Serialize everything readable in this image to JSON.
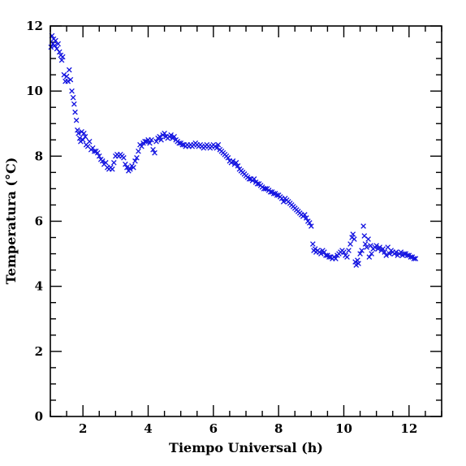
{
  "chart_data": {
    "type": "scatter",
    "title": "",
    "xlabel": "Tiempo Universal (h)",
    "ylabel": "Temperatura (°C)",
    "xlim": [
      1,
      13
    ],
    "ylim": [
      0,
      12
    ],
    "x_ticks": [
      2,
      4,
      6,
      8,
      10,
      12
    ],
    "x_tick_labels": [
      "2",
      "4",
      "6",
      "8",
      "10",
      "12"
    ],
    "y_ticks": [
      0,
      2,
      4,
      6,
      8,
      10,
      12
    ],
    "y_tick_labels": [
      "0",
      "2",
      "4",
      "6",
      "8",
      "10",
      "12"
    ],
    "grid": false,
    "legend": "none",
    "marker": "x",
    "color": "#1010e0",
    "series": [
      {
        "points": [
          [
            1.02,
            11.35
          ],
          [
            1.05,
            11.7
          ],
          [
            1.08,
            11.45
          ],
          [
            1.1,
            11.6
          ],
          [
            1.13,
            11.4
          ],
          [
            1.16,
            11.55
          ],
          [
            1.2,
            11.3
          ],
          [
            1.24,
            11.45
          ],
          [
            1.28,
            11.2
          ],
          [
            1.32,
            11.1
          ],
          [
            1.35,
            10.95
          ],
          [
            1.38,
            11.05
          ],
          [
            1.42,
            10.5
          ],
          [
            1.46,
            10.3
          ],
          [
            1.5,
            10.45
          ],
          [
            1.54,
            10.3
          ],
          [
            1.58,
            10.65
          ],
          [
            1.62,
            10.35
          ],
          [
            1.66,
            10.0
          ],
          [
            1.7,
            9.8
          ],
          [
            1.73,
            9.6
          ],
          [
            1.76,
            9.35
          ],
          [
            1.8,
            9.1
          ],
          [
            1.83,
            8.8
          ],
          [
            1.86,
            8.7
          ],
          [
            1.9,
            8.55
          ],
          [
            1.93,
            8.45
          ],
          [
            1.96,
            8.75
          ],
          [
            2.0,
            8.5
          ],
          [
            2.03,
            8.7
          ],
          [
            2.07,
            8.6
          ],
          [
            2.1,
            8.35
          ],
          [
            2.15,
            8.3
          ],
          [
            2.2,
            8.45
          ],
          [
            2.25,
            8.2
          ],
          [
            2.3,
            8.25
          ],
          [
            2.35,
            8.15
          ],
          [
            2.4,
            8.15
          ],
          [
            2.45,
            8.1
          ],
          [
            2.5,
            8.0
          ],
          [
            2.55,
            7.9
          ],
          [
            2.6,
            7.85
          ],
          [
            2.65,
            7.75
          ],
          [
            2.7,
            7.8
          ],
          [
            2.75,
            7.65
          ],
          [
            2.8,
            7.6
          ],
          [
            2.85,
            7.65
          ],
          [
            2.9,
            7.6
          ],
          [
            2.95,
            7.8
          ],
          [
            3.0,
            8.0
          ],
          [
            3.05,
            8.05
          ],
          [
            3.1,
            8.0
          ],
          [
            3.15,
            8.05
          ],
          [
            3.2,
            8.0
          ],
          [
            3.25,
            7.95
          ],
          [
            3.3,
            7.75
          ],
          [
            3.35,
            7.65
          ],
          [
            3.4,
            7.55
          ],
          [
            3.45,
            7.6
          ],
          [
            3.5,
            7.7
          ],
          [
            3.55,
            7.65
          ],
          [
            3.6,
            7.85
          ],
          [
            3.65,
            7.95
          ],
          [
            3.7,
            8.15
          ],
          [
            3.75,
            8.35
          ],
          [
            3.8,
            8.3
          ],
          [
            3.85,
            8.4
          ],
          [
            3.9,
            8.45
          ],
          [
            3.95,
            8.45
          ],
          [
            4.0,
            8.5
          ],
          [
            4.05,
            8.4
          ],
          [
            4.1,
            8.5
          ],
          [
            4.15,
            8.2
          ],
          [
            4.2,
            8.1
          ],
          [
            4.25,
            8.45
          ],
          [
            4.3,
            8.55
          ],
          [
            4.35,
            8.6
          ],
          [
            4.4,
            8.5
          ],
          [
            4.45,
            8.65
          ],
          [
            4.5,
            8.7
          ],
          [
            4.55,
            8.6
          ],
          [
            4.6,
            8.55
          ],
          [
            4.65,
            8.6
          ],
          [
            4.7,
            8.65
          ],
          [
            4.75,
            8.55
          ],
          [
            4.8,
            8.6
          ],
          [
            4.85,
            8.5
          ],
          [
            4.9,
            8.45
          ],
          [
            4.95,
            8.4
          ],
          [
            5.0,
            8.4
          ],
          [
            5.05,
            8.35
          ],
          [
            5.1,
            8.35
          ],
          [
            5.15,
            8.3
          ],
          [
            5.2,
            8.35
          ],
          [
            5.25,
            8.3
          ],
          [
            5.3,
            8.35
          ],
          [
            5.35,
            8.3
          ],
          [
            5.4,
            8.35
          ],
          [
            5.45,
            8.4
          ],
          [
            5.5,
            8.35
          ],
          [
            5.55,
            8.3
          ],
          [
            5.6,
            8.35
          ],
          [
            5.65,
            8.3
          ],
          [
            5.7,
            8.25
          ],
          [
            5.75,
            8.3
          ],
          [
            5.8,
            8.35
          ],
          [
            5.85,
            8.3
          ],
          [
            5.9,
            8.25
          ],
          [
            5.95,
            8.3
          ],
          [
            6.0,
            8.35
          ],
          [
            6.05,
            8.3
          ],
          [
            6.1,
            8.25
          ],
          [
            6.15,
            8.35
          ],
          [
            6.2,
            8.2
          ],
          [
            6.25,
            8.15
          ],
          [
            6.3,
            8.1
          ],
          [
            6.35,
            8.05
          ],
          [
            6.4,
            8.0
          ],
          [
            6.45,
            7.95
          ],
          [
            6.5,
            7.85
          ],
          [
            6.55,
            7.8
          ],
          [
            6.6,
            7.85
          ],
          [
            6.65,
            7.75
          ],
          [
            6.7,
            7.8
          ],
          [
            6.75,
            7.7
          ],
          [
            6.8,
            7.6
          ],
          [
            6.85,
            7.55
          ],
          [
            6.9,
            7.5
          ],
          [
            6.95,
            7.45
          ],
          [
            7.0,
            7.4
          ],
          [
            7.05,
            7.35
          ],
          [
            7.1,
            7.3
          ],
          [
            7.15,
            7.3
          ],
          [
            7.2,
            7.25
          ],
          [
            7.25,
            7.3
          ],
          [
            7.3,
            7.2
          ],
          [
            7.35,
            7.15
          ],
          [
            7.4,
            7.15
          ],
          [
            7.45,
            7.1
          ],
          [
            7.5,
            7.05
          ],
          [
            7.55,
            7.0
          ],
          [
            7.6,
            7.0
          ],
          [
            7.65,
            7.0
          ],
          [
            7.7,
            6.95
          ],
          [
            7.75,
            6.9
          ],
          [
            7.8,
            6.9
          ],
          [
            7.85,
            6.85
          ],
          [
            7.9,
            6.85
          ],
          [
            7.95,
            6.8
          ],
          [
            8.0,
            6.8
          ],
          [
            8.05,
            6.75
          ],
          [
            8.1,
            6.7
          ],
          [
            8.15,
            6.6
          ],
          [
            8.2,
            6.7
          ],
          [
            8.25,
            6.65
          ],
          [
            8.3,
            6.6
          ],
          [
            8.35,
            6.55
          ],
          [
            8.4,
            6.5
          ],
          [
            8.45,
            6.45
          ],
          [
            8.5,
            6.4
          ],
          [
            8.55,
            6.35
          ],
          [
            8.6,
            6.3
          ],
          [
            8.65,
            6.25
          ],
          [
            8.7,
            6.2
          ],
          [
            8.75,
            6.15
          ],
          [
            8.8,
            6.2
          ],
          [
            8.85,
            6.1
          ],
          [
            8.9,
            6.0
          ],
          [
            8.95,
            5.95
          ],
          [
            9.0,
            5.85
          ],
          [
            9.05,
            5.3
          ],
          [
            9.08,
            5.1
          ],
          [
            9.12,
            5.15
          ],
          [
            9.15,
            5.05
          ],
          [
            9.2,
            5.1
          ],
          [
            9.25,
            5.05
          ],
          [
            9.3,
            5.0
          ],
          [
            9.35,
            5.1
          ],
          [
            9.4,
            5.05
          ],
          [
            9.45,
            4.95
          ],
          [
            9.5,
            4.95
          ],
          [
            9.55,
            4.9
          ],
          [
            9.6,
            4.9
          ],
          [
            9.65,
            4.85
          ],
          [
            9.7,
            4.9
          ],
          [
            9.75,
            4.85
          ],
          [
            9.8,
            4.95
          ],
          [
            9.85,
            5.0
          ],
          [
            9.9,
            5.05
          ],
          [
            9.95,
            5.1
          ],
          [
            10.0,
            5.05
          ],
          [
            10.05,
            4.95
          ],
          [
            10.1,
            4.9
          ],
          [
            10.15,
            5.1
          ],
          [
            10.2,
            5.3
          ],
          [
            10.25,
            5.5
          ],
          [
            10.28,
            5.6
          ],
          [
            10.32,
            5.45
          ],
          [
            10.35,
            4.75
          ],
          [
            10.38,
            4.65
          ],
          [
            10.42,
            4.8
          ],
          [
            10.45,
            4.7
          ],
          [
            10.5,
            5.0
          ],
          [
            10.55,
            5.1
          ],
          [
            10.6,
            5.85
          ],
          [
            10.63,
            5.55
          ],
          [
            10.66,
            5.3
          ],
          [
            10.7,
            5.2
          ],
          [
            10.75,
            5.45
          ],
          [
            10.78,
            4.9
          ],
          [
            10.82,
            5.25
          ],
          [
            10.85,
            5.0
          ],
          [
            10.9,
            5.15
          ],
          [
            10.95,
            5.2
          ],
          [
            11.0,
            5.25
          ],
          [
            11.05,
            5.15
          ],
          [
            11.1,
            5.2
          ],
          [
            11.15,
            5.1
          ],
          [
            11.2,
            5.15
          ],
          [
            11.25,
            5.05
          ],
          [
            11.3,
            4.95
          ],
          [
            11.35,
            5.2
          ],
          [
            11.4,
            5.0
          ],
          [
            11.45,
            5.1
          ],
          [
            11.5,
            5.05
          ],
          [
            11.55,
            5.0
          ],
          [
            11.6,
            5.05
          ],
          [
            11.65,
            4.95
          ],
          [
            11.7,
            5.0
          ],
          [
            11.75,
            5.05
          ],
          [
            11.8,
            4.95
          ],
          [
            11.85,
            5.0
          ],
          [
            11.9,
            5.0
          ],
          [
            11.95,
            4.95
          ],
          [
            12.0,
            4.95
          ],
          [
            12.05,
            4.9
          ],
          [
            12.1,
            4.9
          ],
          [
            12.15,
            4.85
          ],
          [
            12.2,
            4.85
          ]
        ]
      }
    ]
  }
}
